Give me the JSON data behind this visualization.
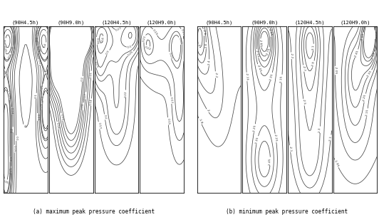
{
  "titles_left": [
    "(90H4.5h)",
    "(90H9.0h)",
    "(120H4.5h)",
    "(120H9.0h)"
  ],
  "titles_right": [
    "(90H4.5h)",
    "(90H9.0h)",
    "(120H4.5h)",
    "(120H9.0h)"
  ],
  "caption_a": "(a) maximum peak pressure coefficient",
  "caption_b": "(b) minimum peak pressure coefficient",
  "bg_color": "#ffffff",
  "line_color": "#444444",
  "panel_aspect": 3.5,
  "title_fontsize": 5.0,
  "caption_fontsize": 5.5
}
